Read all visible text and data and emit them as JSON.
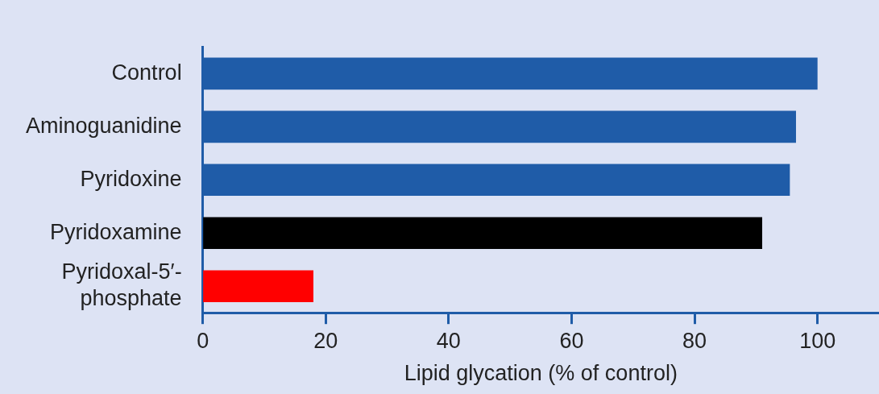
{
  "chart_data": {
    "type": "bar",
    "orientation": "horizontal",
    "xlabel": "Lipid glycation (% of control)",
    "categories": [
      "Control",
      "Aminoguanidine",
      "Pyridoxine",
      "Pyridoxamine",
      "Pyridoxal-5′-phosphate"
    ],
    "values": [
      100,
      96.5,
      95.5,
      91,
      18
    ],
    "colors": [
      "#1f5ca8",
      "#1f5ca8",
      "#1f5ca8",
      "#000000",
      "#ff0000"
    ],
    "xlim": [
      0,
      110
    ],
    "xticks": [
      0,
      20,
      40,
      60,
      80,
      100
    ],
    "grid": false,
    "legend": false
  }
}
